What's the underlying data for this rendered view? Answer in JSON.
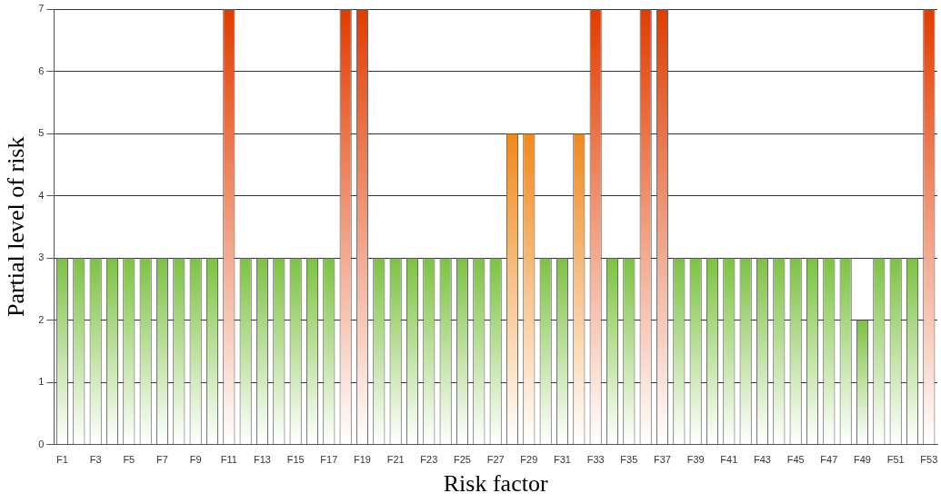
{
  "chart_data": {
    "type": "bar",
    "xlabel": "Risk factor",
    "ylabel": "Partial level of risk",
    "categories": [
      "F1",
      null,
      "F3",
      null,
      "F5",
      null,
      "F7",
      null,
      "F9",
      null,
      "F11",
      null,
      "F13",
      null,
      "F15",
      null,
      "F17",
      null,
      "F19",
      null,
      "F21",
      null,
      "F23",
      null,
      "F25",
      null,
      "F27",
      null,
      "F29",
      null,
      "F31",
      null,
      "F33",
      null,
      "F35",
      null,
      "F37",
      null,
      "F39",
      null,
      "F41",
      null,
      "F43",
      null,
      "F45",
      null,
      "F47",
      null,
      "F49",
      null,
      "F51",
      null,
      "F53"
    ],
    "values": [
      3,
      3,
      3,
      3,
      3,
      3,
      3,
      3,
      3,
      3,
      7,
      3,
      3,
      3,
      3,
      3,
      3,
      7,
      7,
      3,
      3,
      3,
      3,
      3,
      3,
      3,
      3,
      5,
      5,
      3,
      3,
      5,
      7,
      3,
      3,
      7,
      7,
      3,
      3,
      3,
      3,
      3,
      3,
      3,
      3,
      3,
      3,
      3,
      2,
      3,
      3,
      3,
      7
    ],
    "colors": [
      "#7dc242",
      "#7dc242",
      "#7dc242",
      "#7dc242",
      "#7dc242",
      "#7dc242",
      "#7dc242",
      "#7dc242",
      "#7dc242",
      "#7dc242",
      "#e23c00",
      "#7dc242",
      "#7dc242",
      "#7dc242",
      "#7dc242",
      "#7dc242",
      "#7dc242",
      "#e23c00",
      "#e23c00",
      "#7dc242",
      "#7dc242",
      "#7dc242",
      "#7dc242",
      "#7dc242",
      "#7dc242",
      "#7dc242",
      "#7dc242",
      "#f0891c",
      "#f0891c",
      "#7dc242",
      "#7dc242",
      "#f0891c",
      "#e23c00",
      "#7dc242",
      "#7dc242",
      "#e23c00",
      "#e23c00",
      "#7dc242",
      "#7dc242",
      "#7dc242",
      "#7dc242",
      "#7dc242",
      "#7dc242",
      "#7dc242",
      "#7dc242",
      "#7dc242",
      "#7dc242",
      "#7dc242",
      "#7dc242",
      "#7dc242",
      "#7dc242",
      "#7dc242",
      "#e23c00"
    ],
    "ylim": [
      0,
      7
    ],
    "yticks": [
      0,
      1,
      2,
      3,
      4,
      5,
      6,
      7
    ],
    "grid": "y",
    "legend": false
  }
}
